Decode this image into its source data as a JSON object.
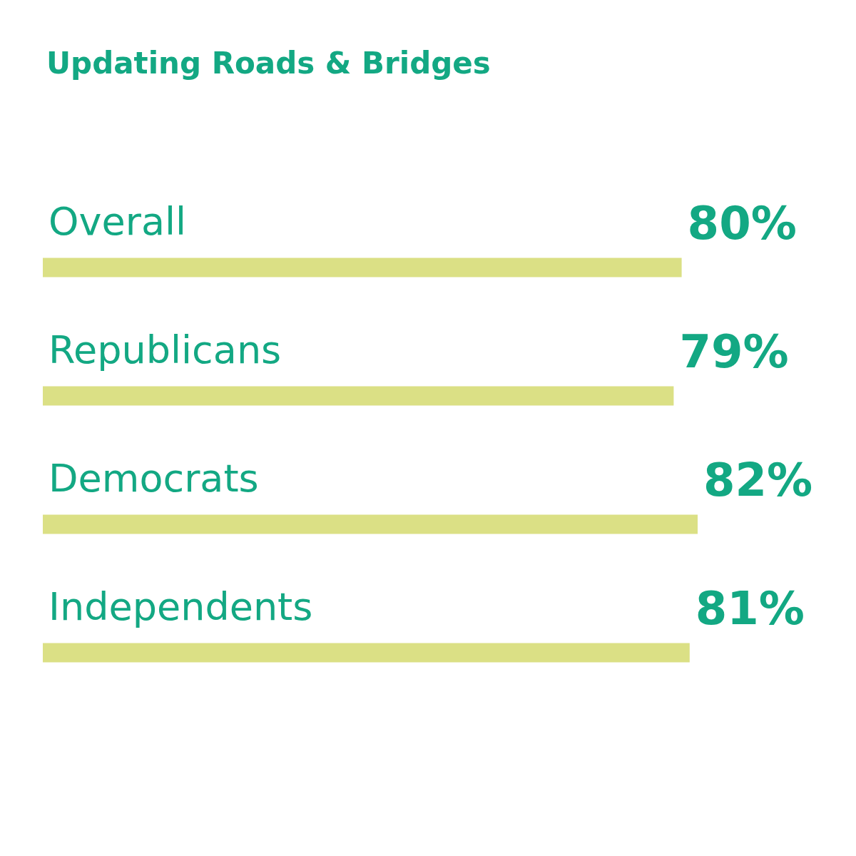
{
  "chart_data": {
    "type": "bar",
    "orientation": "horizontal",
    "title": "Updating Roads & Bridges",
    "categories": [
      "Overall",
      "Republicans",
      "Democrats",
      "Independents"
    ],
    "values": [
      80,
      79,
      82,
      81
    ],
    "value_labels": [
      "80%",
      "79%",
      "82%",
      "81%"
    ],
    "color": "#dbe085"
  }
}
